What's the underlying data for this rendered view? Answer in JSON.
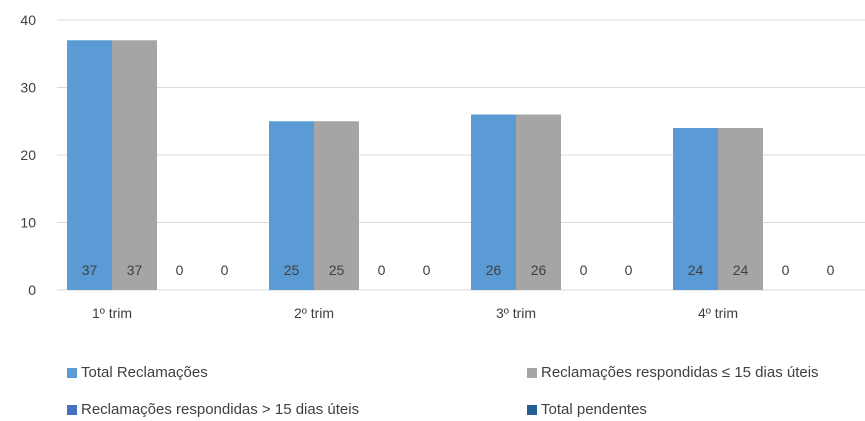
{
  "chart_data": {
    "type": "bar",
    "title": "",
    "xlabel": "",
    "ylabel": "",
    "ylim": [
      0,
      40
    ],
    "yticks": [
      0,
      10,
      20,
      30,
      40
    ],
    "grid": true,
    "legend_position": "bottom",
    "categories": [
      "1º trim",
      "2º trim",
      "3º trim",
      "4º trim"
    ],
    "series": [
      {
        "name": "Total Reclamações",
        "values": [
          37,
          25,
          26,
          24
        ],
        "color": "#5B9BD5"
      },
      {
        "name": "Reclamações respondidas ≤ 15 dias úteis",
        "values": [
          37,
          25,
          26,
          24
        ],
        "color": "#A5A5A5"
      },
      {
        "name": "Reclamações respondidas > 15 dias úteis",
        "values": [
          0,
          0,
          0,
          0
        ],
        "color": "#4472C4"
      },
      {
        "name": "Total pendentes",
        "values": [
          0,
          0,
          0,
          0
        ],
        "color": "#255E91"
      }
    ]
  }
}
